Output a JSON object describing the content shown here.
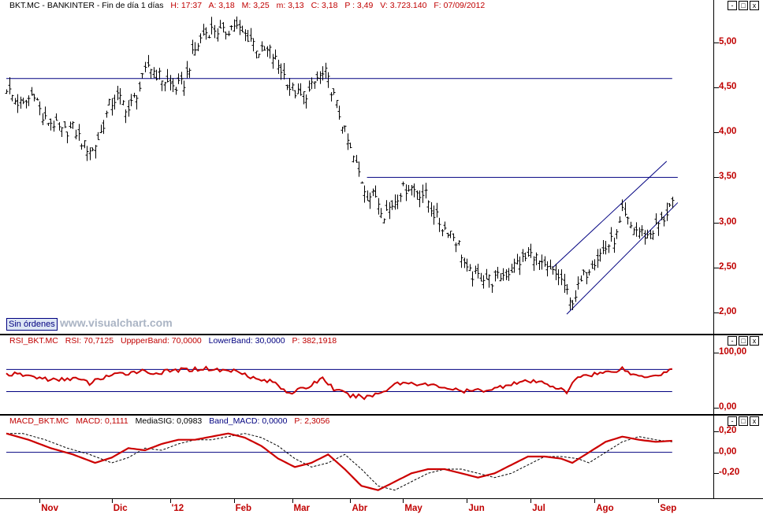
{
  "main": {
    "header": {
      "symbol": "BKT.MC - BANKINTER - Fin de día 1 días",
      "h": "H: 17:37",
      "a": "A: 3,18",
      "m": "M: 3,25",
      "mi": "m: 3,13",
      "c": "C: 3,18",
      "p": "P : 3,49",
      "vol": "V: 3.723.140",
      "f": "F: 07/09/2012"
    },
    "ordenes_label": "Sin órdenes",
    "watermark": "www.visualchart.com"
  },
  "rsi": {
    "header": {
      "name": "RSI_BKT.MC",
      "val": "RSI: 70,7125",
      "up": "UppperBand: 70,0000",
      "low": "LowerBand: 30,0000",
      "p": "P: 382,1918"
    }
  },
  "macd": {
    "header": {
      "name": "MACD_BKT.MC",
      "val": "MACD: 0,1111",
      "sig": "MediaSIG: 0,0983",
      "band": "Band_MACD: 0,0000",
      "p": "P: 2,3056"
    }
  },
  "window_buttons": [
    "-",
    "□",
    "x"
  ],
  "colors": {
    "price_bars": "#000000",
    "lines": "#000080",
    "rsi": "#cc0000",
    "macd": "#cc0000",
    "signal": "#000000",
    "axis_text": "#c00000"
  },
  "chart_data": [
    {
      "type": "ohlc",
      "ylim": [
        1.85,
        5.35
      ],
      "yticks": [
        "2,00",
        "2,50",
        "3,00",
        "3,50",
        "4,00",
        "4,50",
        "5,00"
      ],
      "ytick_values": [
        2.0,
        2.5,
        3.0,
        3.5,
        4.0,
        4.5,
        5.0
      ],
      "x_months": [
        "Nov",
        "Dic",
        "'12",
        "Feb",
        "Mar",
        "Abr",
        "May",
        "Jun",
        "Jul",
        "Ago",
        "Sep"
      ],
      "x_month_start_bar": [
        12,
        38,
        59,
        82,
        103,
        124,
        143,
        166,
        189,
        212,
        235
      ],
      "close_anchor_points": [
        [
          0,
          4.5
        ],
        [
          3,
          4.35
        ],
        [
          6,
          4.3
        ],
        [
          10,
          4.45
        ],
        [
          13,
          4.15
        ],
        [
          17,
          4.1
        ],
        [
          20,
          4.0
        ],
        [
          24,
          4.05
        ],
        [
          28,
          3.85
        ],
        [
          31,
          3.8
        ],
        [
          34,
          4.0
        ],
        [
          37,
          4.3
        ],
        [
          40,
          4.4
        ],
        [
          44,
          4.25
        ],
        [
          48,
          4.5
        ],
        [
          51,
          4.75
        ],
        [
          54,
          4.65
        ],
        [
          58,
          4.55
        ],
        [
          61,
          4.5
        ],
        [
          64,
          4.55
        ],
        [
          67,
          4.85
        ],
        [
          71,
          5.1
        ],
        [
          75,
          5.15
        ],
        [
          78,
          5.1
        ],
        [
          82,
          5.2
        ],
        [
          85,
          5.1
        ],
        [
          88,
          5.05
        ],
        [
          91,
          4.9
        ],
        [
          95,
          4.9
        ],
        [
          99,
          4.7
        ],
        [
          102,
          4.5
        ],
        [
          106,
          4.4
        ],
        [
          109,
          4.45
        ],
        [
          112,
          4.6
        ],
        [
          115,
          4.65
        ],
        [
          118,
          4.4
        ],
        [
          121,
          4.1
        ],
        [
          124,
          3.8
        ],
        [
          127,
          3.55
        ],
        [
          130,
          3.3
        ],
        [
          133,
          3.3
        ],
        [
          136,
          3.1
        ],
        [
          139,
          3.2
        ],
        [
          142,
          3.35
        ],
        [
          145,
          3.4
        ],
        [
          148,
          3.35
        ],
        [
          151,
          3.3
        ],
        [
          154,
          3.1
        ],
        [
          157,
          2.95
        ],
        [
          160,
          2.9
        ],
        [
          163,
          2.75
        ],
        [
          166,
          2.45
        ],
        [
          169,
          2.4
        ],
        [
          172,
          2.4
        ],
        [
          175,
          2.35
        ],
        [
          178,
          2.4
        ],
        [
          181,
          2.45
        ],
        [
          184,
          2.55
        ],
        [
          187,
          2.6
        ],
        [
          190,
          2.65
        ],
        [
          193,
          2.5
        ],
        [
          196,
          2.45
        ],
        [
          199,
          2.4
        ],
        [
          201,
          2.3
        ],
        [
          203,
          2.1
        ],
        [
          205,
          2.2
        ],
        [
          208,
          2.4
        ],
        [
          211,
          2.55
        ],
        [
          214,
          2.65
        ],
        [
          217,
          2.75
        ],
        [
          220,
          2.85
        ],
        [
          222,
          3.1
        ],
        [
          225,
          2.95
        ],
        [
          228,
          2.9
        ],
        [
          231,
          2.85
        ],
        [
          234,
          2.95
        ],
        [
          237,
          3.05
        ],
        [
          239,
          3.18
        ]
      ],
      "hlines": [
        {
          "y": 4.6,
          "x1_bar": 0,
          "x2_bar": 240
        },
        {
          "y": 3.5,
          "x1_bar": 130,
          "x2_bar": 242
        }
      ],
      "channel": [
        {
          "x1_bar": 197,
          "y1": 2.5,
          "x2_bar": 238,
          "y2": 3.68
        },
        {
          "x1_bar": 202,
          "y1": 1.98,
          "x2_bar": 242,
          "y2": 3.22
        }
      ]
    },
    {
      "type": "line",
      "name": "RSI",
      "ylim": [
        -5,
        112
      ],
      "yticks": [
        "100,00",
        "0,00"
      ],
      "ytick_values": [
        100,
        0
      ],
      "bands": [
        70,
        30
      ],
      "anchor_points": [
        [
          0,
          62
        ],
        [
          6,
          60
        ],
        [
          12,
          55
        ],
        [
          18,
          50
        ],
        [
          24,
          55
        ],
        [
          30,
          45
        ],
        [
          36,
          58
        ],
        [
          42,
          62
        ],
        [
          48,
          68
        ],
        [
          54,
          63
        ],
        [
          60,
          68
        ],
        [
          66,
          70
        ],
        [
          72,
          72
        ],
        [
          78,
          68
        ],
        [
          84,
          68
        ],
        [
          90,
          52
        ],
        [
          96,
          48
        ],
        [
          102,
          28
        ],
        [
          108,
          36
        ],
        [
          114,
          55
        ],
        [
          118,
          35
        ],
        [
          124,
          22
        ],
        [
          130,
          20
        ],
        [
          136,
          30
        ],
        [
          140,
          45
        ],
        [
          146,
          46
        ],
        [
          152,
          42
        ],
        [
          158,
          38
        ],
        [
          164,
          30
        ],
        [
          170,
          32
        ],
        [
          176,
          35
        ],
        [
          182,
          45
        ],
        [
          188,
          48
        ],
        [
          194,
          46
        ],
        [
          198,
          38
        ],
        [
          202,
          28
        ],
        [
          206,
          58
        ],
        [
          212,
          62
        ],
        [
          218,
          66
        ],
        [
          222,
          72
        ],
        [
          226,
          60
        ],
        [
          230,
          58
        ],
        [
          236,
          62
        ],
        [
          240,
          71
        ]
      ]
    },
    {
      "type": "line",
      "name": "MACD",
      "ylim": [
        -0.4,
        0.26
      ],
      "yticks": [
        "0,20",
        "0,00",
        "-0,20"
      ],
      "ytick_values": [
        0.2,
        0.0,
        -0.2
      ],
      "zero_line": 0.0,
      "macd_points": [
        [
          0,
          0.18
        ],
        [
          8,
          0.12
        ],
        [
          16,
          0.04
        ],
        [
          24,
          -0.02
        ],
        [
          32,
          -0.1
        ],
        [
          38,
          -0.05
        ],
        [
          44,
          0.04
        ],
        [
          50,
          0.02
        ],
        [
          56,
          0.08
        ],
        [
          62,
          0.12
        ],
        [
          68,
          0.12
        ],
        [
          74,
          0.15
        ],
        [
          80,
          0.18
        ],
        [
          86,
          0.14
        ],
        [
          92,
          0.06
        ],
        [
          98,
          -0.06
        ],
        [
          104,
          -0.14
        ],
        [
          110,
          -0.1
        ],
        [
          116,
          -0.02
        ],
        [
          122,
          -0.16
        ],
        [
          128,
          -0.32
        ],
        [
          134,
          -0.36
        ],
        [
          140,
          -0.28
        ],
        [
          146,
          -0.2
        ],
        [
          152,
          -0.16
        ],
        [
          158,
          -0.16
        ],
        [
          164,
          -0.2
        ],
        [
          170,
          -0.24
        ],
        [
          176,
          -0.2
        ],
        [
          182,
          -0.12
        ],
        [
          188,
          -0.04
        ],
        [
          194,
          -0.04
        ],
        [
          200,
          -0.06
        ],
        [
          204,
          -0.1
        ],
        [
          210,
          0.0
        ],
        [
          216,
          0.1
        ],
        [
          222,
          0.15
        ],
        [
          228,
          0.12
        ],
        [
          234,
          0.1
        ],
        [
          240,
          0.11
        ]
      ],
      "signal_lag_bars": 6
    }
  ]
}
